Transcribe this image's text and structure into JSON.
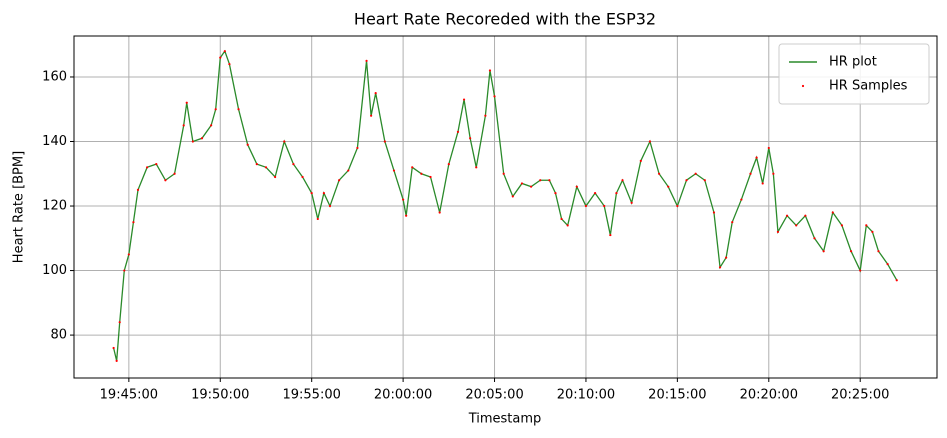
{
  "chart_data": {
    "type": "line",
    "title": "Heart Rate Recoreded with the ESP32",
    "x_label": "Timestamp",
    "y_label": "Heart Rate [BPM]",
    "x": [
      "19:44:10",
      "19:44:20",
      "19:44:30",
      "19:44:45",
      "19:45:00",
      "19:45:15",
      "19:45:30",
      "19:46:00",
      "19:46:30",
      "19:47:00",
      "19:47:30",
      "19:48:00",
      "19:48:10",
      "19:48:30",
      "19:49:00",
      "19:49:30",
      "19:49:45",
      "19:50:00",
      "19:50:15",
      "19:50:30",
      "19:51:00",
      "19:51:30",
      "19:52:00",
      "19:52:30",
      "19:53:00",
      "19:53:30",
      "19:54:00",
      "19:54:30",
      "19:55:00",
      "19:55:20",
      "19:55:40",
      "19:56:00",
      "19:56:30",
      "19:57:00",
      "19:57:30",
      "19:58:00",
      "19:58:15",
      "19:58:30",
      "19:59:00",
      "19:59:30",
      "20:00:00",
      "20:00:10",
      "20:00:30",
      "20:01:00",
      "20:01:30",
      "20:02:00",
      "20:02:30",
      "20:03:00",
      "20:03:20",
      "20:03:40",
      "20:04:00",
      "20:04:30",
      "20:04:45",
      "20:05:00",
      "20:05:30",
      "20:06:00",
      "20:06:30",
      "20:07:00",
      "20:07:30",
      "20:08:00",
      "20:08:20",
      "20:08:40",
      "20:09:00",
      "20:09:30",
      "20:10:00",
      "20:10:30",
      "20:11:00",
      "20:11:20",
      "20:11:40",
      "20:12:00",
      "20:12:30",
      "20:13:00",
      "20:13:30",
      "20:14:00",
      "20:14:30",
      "20:15:00",
      "20:15:30",
      "20:16:00",
      "20:16:30",
      "20:17:00",
      "20:17:20",
      "20:17:40",
      "20:18:00",
      "20:18:30",
      "20:19:00",
      "20:19:20",
      "20:19:40",
      "20:20:00",
      "20:20:15",
      "20:20:30",
      "20:21:00",
      "20:21:30",
      "20:22:00",
      "20:22:30",
      "20:23:00",
      "20:23:30",
      "20:24:00",
      "20:24:30",
      "20:25:00",
      "20:25:20",
      "20:25:40",
      "20:26:00",
      "20:26:30",
      "20:27:00"
    ],
    "series": [
      {
        "name": "HR plot",
        "color": "#2a8a2a",
        "style": "line",
        "values": [
          76,
          72,
          84,
          100,
          105,
          115,
          125,
          132,
          133,
          128,
          130,
          145,
          152,
          140,
          141,
          145,
          150,
          166,
          168,
          164,
          150,
          139,
          133,
          132,
          129,
          140,
          133,
          129,
          124,
          116,
          124,
          120,
          128,
          131,
          138,
          165,
          148,
          155,
          140,
          131,
          122,
          117,
          132,
          130,
          129,
          118,
          133,
          143,
          153,
          141,
          132,
          148,
          162,
          154,
          130,
          123,
          127,
          126,
          128,
          128,
          124,
          116,
          114,
          126,
          120,
          124,
          120,
          111,
          124,
          128,
          121,
          134,
          140,
          130,
          126,
          120,
          128,
          130,
          128,
          118,
          101,
          104,
          115,
          122,
          130,
          135,
          127,
          138,
          130,
          112,
          117,
          114,
          117,
          110,
          106,
          118,
          114,
          106,
          100,
          114,
          112,
          106,
          102,
          97
        ]
      },
      {
        "name": "HR Samples",
        "color": "#ff0000",
        "style": "markers",
        "values": [
          76,
          72,
          84,
          100,
          105,
          115,
          125,
          132,
          133,
          128,
          130,
          145,
          152,
          140,
          141,
          145,
          150,
          166,
          168,
          164,
          150,
          139,
          133,
          132,
          129,
          140,
          133,
          129,
          124,
          116,
          124,
          120,
          128,
          131,
          138,
          165,
          148,
          155,
          140,
          131,
          122,
          117,
          132,
          130,
          129,
          118,
          133,
          143,
          153,
          141,
          132,
          148,
          162,
          154,
          130,
          123,
          127,
          126,
          128,
          128,
          124,
          116,
          114,
          126,
          120,
          124,
          120,
          111,
          124,
          128,
          121,
          134,
          140,
          130,
          126,
          120,
          128,
          130,
          128,
          118,
          101,
          104,
          115,
          122,
          130,
          135,
          127,
          138,
          130,
          112,
          117,
          114,
          117,
          110,
          106,
          118,
          114,
          106,
          100,
          114,
          112,
          106,
          102,
          97
        ]
      }
    ],
    "xlim": [
      "19:42:00",
      "20:29:12"
    ],
    "xticks": [
      "19:45:00",
      "19:50:00",
      "19:55:00",
      "20:00:00",
      "20:05:00",
      "20:10:00",
      "20:15:00",
      "20:20:00",
      "20:25:00"
    ],
    "ylim": [
      66.7,
      172.7
    ],
    "yticks": [
      80,
      100,
      120,
      140,
      160
    ],
    "grid": true,
    "legend": "upper right"
  }
}
